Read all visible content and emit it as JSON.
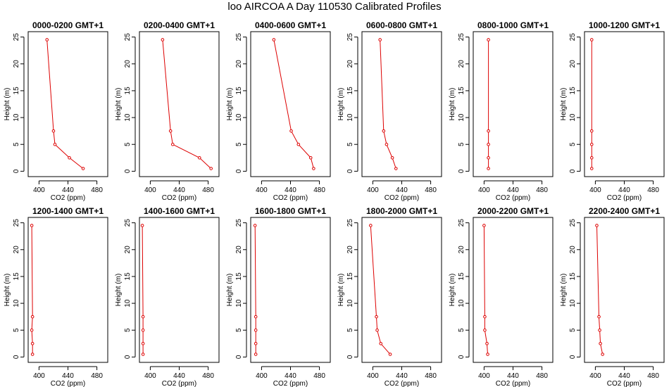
{
  "figure": {
    "title": "loo AIRCOA A  Day 110530  Calibrated Profiles"
  },
  "colors": {
    "series": "#dd0000",
    "axis": "#000000",
    "background": "#ffffff"
  },
  "chart_data": [
    {
      "type": "line",
      "title": "0000-0200 GMT+1",
      "xlabel": "CO2 (ppm)",
      "ylabel": "Height (m)",
      "xlim": [
        385,
        495
      ],
      "ylim": [
        -1,
        26
      ],
      "xticks": [
        400,
        440,
        480
      ],
      "yticks": [
        0,
        5,
        10,
        15,
        20,
        25
      ],
      "grid": false,
      "series": [
        {
          "x": [
            461,
            442,
            422,
            420,
            411
          ],
          "y": [
            0.5,
            2.5,
            5,
            7.5,
            24.5
          ]
        }
      ]
    },
    {
      "type": "line",
      "title": "0200-0400 GMT+1",
      "xlabel": "CO2 (ppm)",
      "ylabel": "Height (m)",
      "xlim": [
        385,
        495
      ],
      "ylim": [
        -1,
        26
      ],
      "xticks": [
        400,
        440,
        480
      ],
      "yticks": [
        0,
        5,
        10,
        15,
        20,
        25
      ],
      "grid": false,
      "series": [
        {
          "x": [
            484,
            468,
            431,
            428,
            417
          ],
          "y": [
            0.5,
            2.5,
            5,
            7.5,
            24.5
          ]
        }
      ]
    },
    {
      "type": "line",
      "title": "0400-0600 GMT+1",
      "xlabel": "CO2 (ppm)",
      "ylabel": "Height (m)",
      "xlim": [
        385,
        495
      ],
      "ylim": [
        -1,
        26
      ],
      "xticks": [
        400,
        440,
        480
      ],
      "yticks": [
        0,
        5,
        10,
        15,
        20,
        25
      ],
      "grid": false,
      "series": [
        {
          "x": [
            472,
            468,
            451,
            441,
            417
          ],
          "y": [
            0.5,
            2.5,
            5,
            7.5,
            24.5
          ]
        }
      ]
    },
    {
      "type": "line",
      "title": "0600-0800 GMT+1",
      "xlabel": "CO2 (ppm)",
      "ylabel": "Height (m)",
      "xlim": [
        385,
        495
      ],
      "ylim": [
        -1,
        26
      ],
      "xticks": [
        400,
        440,
        480
      ],
      "yticks": [
        0,
        5,
        10,
        15,
        20,
        25
      ],
      "grid": false,
      "series": [
        {
          "x": [
            432,
            427,
            419,
            415,
            410
          ],
          "y": [
            0.5,
            2.5,
            5,
            7.5,
            24.5
          ]
        }
      ]
    },
    {
      "type": "line",
      "title": "0800-1000 GMT+1",
      "xlabel": "CO2 (ppm)",
      "ylabel": "Height (m)",
      "xlim": [
        385,
        495
      ],
      "ylim": [
        -1,
        26
      ],
      "xticks": [
        400,
        440,
        480
      ],
      "yticks": [
        0,
        5,
        10,
        15,
        20,
        25
      ],
      "grid": false,
      "series": [
        {
          "x": [
            406,
            406,
            406,
            406,
            406
          ],
          "y": [
            0.5,
            2.5,
            5,
            7.5,
            24.5
          ]
        }
      ]
    },
    {
      "type": "line",
      "title": "1000-1200 GMT+1",
      "xlabel": "CO2 (ppm)",
      "ylabel": "Height (m)",
      "xlim": [
        385,
        495
      ],
      "ylim": [
        -1,
        26
      ],
      "xticks": [
        400,
        440,
        480
      ],
      "yticks": [
        0,
        5,
        10,
        15,
        20,
        25
      ],
      "grid": false,
      "series": [
        {
          "x": [
            395,
            395,
            395,
            395,
            395
          ],
          "y": [
            0.5,
            2.5,
            5,
            7.5,
            24.5
          ]
        }
      ]
    },
    {
      "type": "line",
      "title": "1200-1400 GMT+1",
      "xlabel": "CO2 (ppm)",
      "ylabel": "Height (m)",
      "xlim": [
        385,
        495
      ],
      "ylim": [
        -1,
        26
      ],
      "xticks": [
        400,
        440,
        480
      ],
      "yticks": [
        0,
        5,
        10,
        15,
        20,
        25
      ],
      "grid": false,
      "series": [
        {
          "x": [
            391,
            391,
            390,
            391,
            390
          ],
          "y": [
            0.5,
            2.5,
            5,
            7.5,
            24.5
          ]
        }
      ]
    },
    {
      "type": "line",
      "title": "1400-1600 GMT+1",
      "xlabel": "CO2 (ppm)",
      "ylabel": "Height (m)",
      "xlim": [
        385,
        495
      ],
      "ylim": [
        -1,
        26
      ],
      "xticks": [
        400,
        440,
        480
      ],
      "yticks": [
        0,
        5,
        10,
        15,
        20,
        25
      ],
      "grid": false,
      "series": [
        {
          "x": [
            390,
            390,
            390,
            390,
            389
          ],
          "y": [
            0.5,
            2.5,
            5,
            7.5,
            24.5
          ]
        }
      ]
    },
    {
      "type": "line",
      "title": "1600-1800 GMT+1",
      "xlabel": "CO2 (ppm)",
      "ylabel": "Height (m)",
      "xlim": [
        385,
        495
      ],
      "ylim": [
        -1,
        26
      ],
      "xticks": [
        400,
        440,
        480
      ],
      "yticks": [
        0,
        5,
        10,
        15,
        20,
        25
      ],
      "grid": false,
      "series": [
        {
          "x": [
            392,
            392,
            392,
            392,
            391
          ],
          "y": [
            0.5,
            2.5,
            5,
            7.5,
            24.5
          ]
        }
      ]
    },
    {
      "type": "line",
      "title": "1800-2000 GMT+1",
      "xlabel": "CO2 (ppm)",
      "ylabel": "Height (m)",
      "xlim": [
        385,
        495
      ],
      "ylim": [
        -1,
        26
      ],
      "xticks": [
        400,
        440,
        480
      ],
      "yticks": [
        0,
        5,
        10,
        15,
        20,
        25
      ],
      "grid": false,
      "series": [
        {
          "x": [
            424,
            411,
            406,
            405,
            397
          ],
          "y": [
            0.5,
            2.5,
            5,
            7.5,
            24.5
          ]
        }
      ]
    },
    {
      "type": "line",
      "title": "2000-2200 GMT+1",
      "xlabel": "CO2 (ppm)",
      "ylabel": "Height (m)",
      "xlim": [
        385,
        495
      ],
      "ylim": [
        -1,
        26
      ],
      "xticks": [
        400,
        440,
        480
      ],
      "yticks": [
        0,
        5,
        10,
        15,
        20,
        25
      ],
      "grid": false,
      "series": [
        {
          "x": [
            405,
            404,
            401,
            401,
            400
          ],
          "y": [
            0.5,
            2.5,
            5,
            7.5,
            24.5
          ]
        }
      ]
    },
    {
      "type": "line",
      "title": "2200-2400 GMT+1",
      "xlabel": "CO2 (ppm)",
      "ylabel": "Height (m)",
      "xlim": [
        385,
        495
      ],
      "ylim": [
        -1,
        26
      ],
      "xticks": [
        400,
        440,
        480
      ],
      "yticks": [
        0,
        5,
        10,
        15,
        20,
        25
      ],
      "grid": false,
      "series": [
        {
          "x": [
            410,
            407,
            406,
            405,
            402
          ],
          "y": [
            0.5,
            2.5,
            5,
            7.5,
            24.5
          ]
        }
      ]
    }
  ]
}
